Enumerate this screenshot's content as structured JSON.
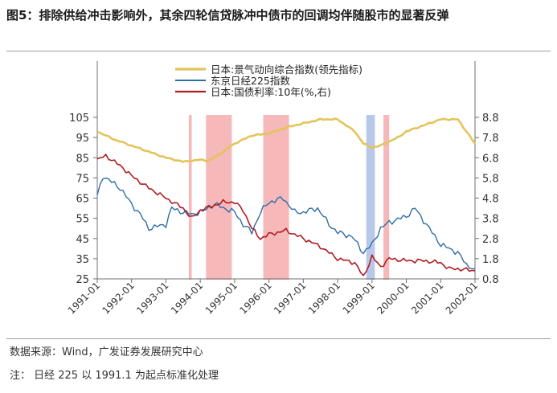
{
  "page": {
    "title": "图5：排除供给冲击影响外，其余四轮信贷脉冲中债市的回调均伴随股市的显著反弹",
    "source": "数据来源：Wind，广发证券发展研究中心",
    "note": "注：  日经 225 以 1991.1 为起点标准化处理"
  },
  "chart_data": {
    "type": "line",
    "title": "",
    "xlabel": "",
    "ylabel": "",
    "x_ticks": [
      "1991-01",
      "1992-01",
      "1993-01",
      "1994-01",
      "1995-01",
      "1996-01",
      "1997-01",
      "1998-01",
      "1999-01",
      "2000-01",
      "2001-01",
      "2002-01"
    ],
    "x_range": [
      "1991-01",
      "2002-01"
    ],
    "y_left": {
      "ticks": [
        105,
        95,
        85,
        75,
        65,
        55,
        45,
        35,
        25
      ],
      "ylim": [
        25,
        105
      ]
    },
    "y_right": {
      "ticks": [
        "8.8",
        "7.8",
        "6.8",
        "5.8",
        "4.8",
        "3.8",
        "2.8",
        "1.8",
        "0.8"
      ],
      "ylim": [
        0.8,
        8.8
      ]
    },
    "legend_placement": "top-left",
    "grid": false,
    "colors": {
      "leading": "#e3c45a",
      "nikkei": "#2e6ea6",
      "jgb": "#b01c22",
      "red_band": "#f6b8b8",
      "blue_band": "#b8c8ea"
    },
    "shaded_periods": [
      {
        "color": "red",
        "start": "1993-09",
        "end": "1993-10"
      },
      {
        "color": "red",
        "start": "1994-03",
        "end": "1994-12"
      },
      {
        "color": "red",
        "start": "1995-11",
        "end": "1996-08"
      },
      {
        "color": "blue",
        "start": "1998-11",
        "end": "1999-02"
      },
      {
        "color": "red",
        "start": "1999-05",
        "end": "1999-07"
      }
    ],
    "series": [
      {
        "name": "日本:景气动向综合指数(领先指标)",
        "axis": "left",
        "points": [
          [
            "1991-01",
            98
          ],
          [
            "1991-07",
            94
          ],
          [
            "1992-01",
            91
          ],
          [
            "1992-07",
            88
          ],
          [
            "1993-01",
            85
          ],
          [
            "1993-07",
            83
          ],
          [
            "1994-01",
            84
          ],
          [
            "1994-04",
            83.5
          ],
          [
            "1994-07",
            86
          ],
          [
            "1995-01",
            92
          ],
          [
            "1995-07",
            96
          ],
          [
            "1996-01",
            97
          ],
          [
            "1996-07",
            100
          ],
          [
            "1997-01",
            102
          ],
          [
            "1997-07",
            104
          ],
          [
            "1998-01",
            104
          ],
          [
            "1998-07",
            98
          ],
          [
            "1998-10",
            92
          ],
          [
            "1999-01",
            90
          ],
          [
            "1999-04",
            91
          ],
          [
            "1999-10",
            95
          ],
          [
            "2000-01",
            98
          ],
          [
            "2000-07",
            101
          ],
          [
            "2001-01",
            104
          ],
          [
            "2001-07",
            104
          ],
          [
            "2001-10",
            98
          ],
          [
            "2002-01",
            92
          ]
        ]
      },
      {
        "name": "东京日经225指数",
        "axis": "left",
        "points": [
          [
            "1991-01",
            66
          ],
          [
            "1991-03",
            76
          ],
          [
            "1991-09",
            70
          ],
          [
            "1992-01",
            62
          ],
          [
            "1992-04",
            57
          ],
          [
            "1992-07",
            50
          ],
          [
            "1993-01",
            52
          ],
          [
            "1993-03",
            60
          ],
          [
            "1993-07",
            58
          ],
          [
            "1993-10",
            57
          ],
          [
            "1994-01",
            58
          ],
          [
            "1994-06",
            62
          ],
          [
            "1995-01",
            58
          ],
          [
            "1995-04",
            52
          ],
          [
            "1995-07",
            48
          ],
          [
            "1995-10",
            58
          ],
          [
            "1996-01",
            63
          ],
          [
            "1996-06",
            65
          ],
          [
            "1996-10",
            58
          ],
          [
            "1997-01",
            58
          ],
          [
            "1997-06",
            60
          ],
          [
            "1997-10",
            52
          ],
          [
            "1998-01",
            48
          ],
          [
            "1998-06",
            46
          ],
          [
            "1998-10",
            38
          ],
          [
            "1999-01",
            42
          ],
          [
            "1999-04",
            50
          ],
          [
            "1999-07",
            53
          ],
          [
            "2000-01",
            56
          ],
          [
            "2000-04",
            60
          ],
          [
            "2000-10",
            48
          ],
          [
            "2001-01",
            42
          ],
          [
            "2001-07",
            38
          ],
          [
            "2001-10",
            32
          ],
          [
            "2002-01",
            30
          ]
        ]
      },
      {
        "name": "日本:国债利率:10年(%,右)",
        "axis": "right",
        "points": [
          [
            "1991-01",
            6.7
          ],
          [
            "1991-04",
            6.9
          ],
          [
            "1991-10",
            6.3
          ],
          [
            "1992-01",
            5.9
          ],
          [
            "1992-07",
            5.3
          ],
          [
            "1993-01",
            4.8
          ],
          [
            "1993-07",
            4.3
          ],
          [
            "1993-10",
            3.8
          ],
          [
            "1994-01",
            4.2
          ],
          [
            "1994-09",
            4.6
          ],
          [
            "1995-01",
            4.6
          ],
          [
            "1995-04",
            4.2
          ],
          [
            "1995-07",
            3.3
          ],
          [
            "1995-10",
            2.8
          ],
          [
            "1996-01",
            3.0
          ],
          [
            "1996-07",
            3.2
          ],
          [
            "1997-01",
            2.8
          ],
          [
            "1997-07",
            2.4
          ],
          [
            "1998-01",
            1.8
          ],
          [
            "1998-07",
            1.6
          ],
          [
            "1998-10",
            0.9
          ],
          [
            "1999-01",
            1.9
          ],
          [
            "1999-04",
            1.4
          ],
          [
            "1999-07",
            1.8
          ],
          [
            "2000-01",
            1.7
          ],
          [
            "2000-07",
            1.7
          ],
          [
            "2001-01",
            1.6
          ],
          [
            "2001-04",
            1.3
          ],
          [
            "2001-07",
            1.3
          ],
          [
            "2002-01",
            1.2
          ]
        ]
      }
    ]
  }
}
